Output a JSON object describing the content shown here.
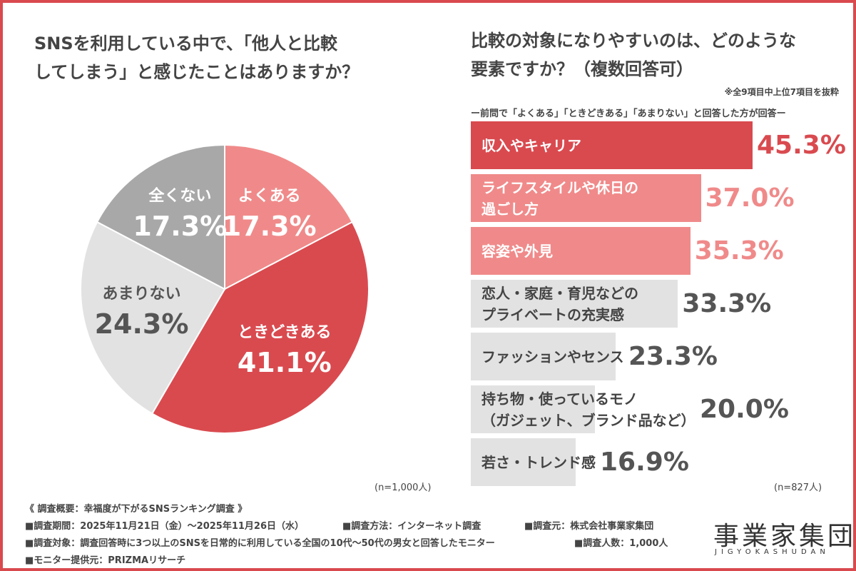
{
  "chart_data": [
    {
      "type": "pie",
      "title": [
        "SNSを利用している中で、「他人と比較",
        "してしまう」と感じたことはありますか？"
      ],
      "categories": [
        "よくある",
        "ときどきある",
        "あまりない",
        "全くない"
      ],
      "values": [
        17.3,
        41.1,
        24.3,
        17.3
      ],
      "value_labels": [
        "17.3%",
        "41.1%",
        "24.3%",
        "17.3%"
      ],
      "colors": [
        "#f08a8a",
        "#d94a4f",
        "#e2e2e2",
        "#a8a8a8"
      ],
      "note": "(n=1,000人)"
    },
    {
      "type": "hbar",
      "title": [
        "比較の対象になりやすいのは、どのような",
        "要素ですか？（複数回答可）"
      ],
      "subtitle": "※全9項目中上位7項目を抜粋",
      "caption": "ー前問で「よくある」「ときどきある」「あまりない」と回答した方が回答ー",
      "categories": [
        [
          "収入やキャリア"
        ],
        [
          "ライフスタイルや休日の",
          "過ごし方"
        ],
        [
          "容姿や外見"
        ],
        [
          "恋人・家庭・育児などの",
          "プライベートの充実感"
        ],
        [
          "ファッションやセンス"
        ],
        [
          "持ち物・使っているモノ",
          "（ガジェット、ブランド品など）"
        ],
        [
          "若さ・トレンド感"
        ]
      ],
      "values": [
        45.3,
        37.0,
        35.3,
        33.3,
        23.3,
        20.0,
        16.9
      ],
      "value_labels": [
        "45.3%",
        "37.0%",
        "35.3%",
        "33.3%",
        "23.3%",
        "20.0%",
        "16.9%"
      ],
      "colors": [
        "#d94a4f",
        "#f08a8a",
        "#f08a8a",
        "#e2e2e2",
        "#e2e2e2",
        "#e2e2e2",
        "#e2e2e2"
      ],
      "note": "(n=827人)"
    }
  ],
  "footer": {
    "heading": "《 調査概要：幸福度が下がるSNSランキング調査 》",
    "items": [
      "■調査期間：2025年11月21日（金）～2025年11月26日（水）",
      "■調査方法：インターネット調査",
      "■調査元：株式会社事業家集団",
      "■調査対象：調査回答時に3つ以上のSNSを日常的に利用している全国の10代～50代の男女と回答したモニター",
      "■調査人数：1,000人",
      "■モニター提供元：PRIZMAリサーチ"
    ]
  },
  "logo": {
    "name": "事業家集団",
    "roman": "JIGYOKASHUDAN"
  }
}
